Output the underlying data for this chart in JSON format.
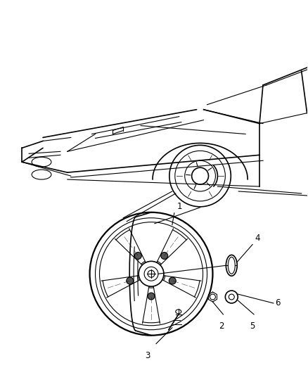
{
  "background_color": "#ffffff",
  "fig_width": 4.38,
  "fig_height": 5.33,
  "dpi": 100,
  "line_color": "#000000",
  "text_color": "#000000",
  "callout_fontsize": 8.5
}
